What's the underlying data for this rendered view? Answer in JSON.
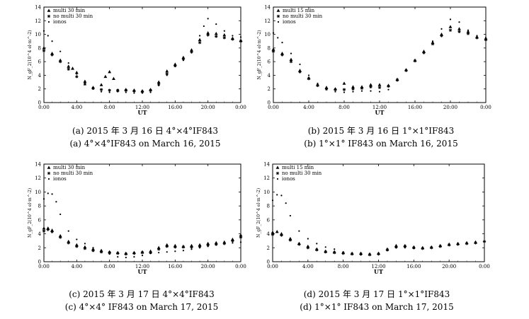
{
  "chart_data": [
    {
      "id": "a",
      "type": "scatter",
      "xlabel": "UT",
      "ylabel": "N_gF_2(10^4 el·m^-2)",
      "xlim": [
        0,
        24
      ],
      "ylim": [
        0,
        14
      ],
      "x_ticks": [
        "0:00",
        "4:00",
        "8:00",
        "12:00",
        "16:00",
        "20:00",
        "0:00"
      ],
      "y_ticks": [
        "0",
        "2",
        "4",
        "6",
        "8",
        "10",
        "12",
        "14"
      ],
      "legend_position": "top-left",
      "series": [
        {
          "name": "multi 30 min",
          "marker": "triangle",
          "x": [
            0,
            1,
            2,
            3,
            3.5,
            4,
            5,
            6,
            7,
            7.5,
            8,
            8.5,
            9,
            10,
            11,
            12,
            13,
            14,
            15,
            16,
            17,
            18,
            19,
            20,
            21,
            22,
            23,
            24
          ],
          "y": [
            8.0,
            7.2,
            6.2,
            5.3,
            5.0,
            4.4,
            3.1,
            2.2,
            2.6,
            3.8,
            4.5,
            3.5,
            1.8,
            1.9,
            1.8,
            1.7,
            1.9,
            3.0,
            4.6,
            5.6,
            6.6,
            7.7,
            9.2,
            10.2,
            10.1,
            9.9,
            9.4,
            9.1
          ]
        },
        {
          "name": "no multi 30 min",
          "marker": "star",
          "x": [
            0,
            1,
            2,
            3,
            4,
            5,
            6,
            7,
            8,
            9,
            10,
            11,
            12,
            13,
            14,
            15,
            16,
            17,
            18,
            19,
            20,
            21,
            22,
            23,
            24
          ],
          "y": [
            7.6,
            7.0,
            6.0,
            4.9,
            3.8,
            2.7,
            2.1,
            1.9,
            1.8,
            1.8,
            1.8,
            1.7,
            1.6,
            1.8,
            2.7,
            4.2,
            5.4,
            6.4,
            7.4,
            8.8,
            9.9,
            9.7,
            9.5,
            9.3,
            9.0
          ]
        },
        {
          "name": "ionos",
          "marker": "dot",
          "x": [
            0,
            0.5,
            1,
            2,
            3,
            4,
            5,
            6,
            7,
            8,
            9,
            10,
            11,
            12,
            13,
            14,
            15,
            16,
            17,
            18,
            19,
            19.5,
            20,
            21,
            22,
            23,
            24
          ],
          "y": [
            10.5,
            9.8,
            9.0,
            7.5,
            5.8,
            4.2,
            2.9,
            2.0,
            1.6,
            1.5,
            1.6,
            1.5,
            1.4,
            1.4,
            1.5,
            2.5,
            4.0,
            5.3,
            6.2,
            7.7,
            9.8,
            11.2,
            12.3,
            11.5,
            10.5,
            9.8,
            9.6
          ]
        }
      ]
    },
    {
      "id": "b",
      "type": "scatter",
      "xlabel": "UT",
      "ylabel": "N_gF_2(10^4 el·m^-2)",
      "xlim": [
        0,
        24
      ],
      "ylim": [
        0,
        14
      ],
      "x_ticks": [
        "0:00",
        "4:00",
        "8:00",
        "12:00",
        "16:00",
        "20:00",
        "0:00"
      ],
      "y_ticks": [
        "0",
        "2",
        "4",
        "6",
        "8",
        "10",
        "12",
        "14"
      ],
      "legend_position": "top-left",
      "series": [
        {
          "name": "multi 15 min",
          "marker": "triangle",
          "x": [
            0,
            1,
            2,
            3,
            4,
            5,
            6,
            7,
            8,
            9,
            10,
            11,
            12,
            13,
            14,
            15,
            16,
            17,
            18,
            19,
            20,
            21,
            22,
            23,
            24
          ],
          "y": [
            7.8,
            7.2,
            6.3,
            4.7,
            3.6,
            2.6,
            2.2,
            2.0,
            2.8,
            2.3,
            2.3,
            2.6,
            2.6,
            2.5,
            3.4,
            4.8,
            6.2,
            7.5,
            8.8,
            10.0,
            11.1,
            10.8,
            10.4,
            9.6,
            9.4
          ]
        },
        {
          "name": "no multi 30 min",
          "marker": "star",
          "x": [
            0,
            1,
            2,
            3,
            4,
            5,
            6,
            7,
            8,
            9,
            10,
            11,
            12,
            13,
            14,
            15,
            16,
            17,
            18,
            19,
            20,
            21,
            22,
            23,
            24
          ],
          "y": [
            7.5,
            7.0,
            6.0,
            4.5,
            3.5,
            2.5,
            2.0,
            1.9,
            1.9,
            2.0,
            2.1,
            2.3,
            2.2,
            2.4,
            3.3,
            4.7,
            6.1,
            7.3,
            8.6,
            9.8,
            10.6,
            10.4,
            10.1,
            9.5,
            9.2
          ]
        },
        {
          "name": "ionos",
          "marker": "dot",
          "x": [
            0,
            0.5,
            1,
            2,
            3,
            4,
            5,
            6,
            7,
            8,
            9,
            10,
            11,
            12,
            13,
            14,
            15,
            16,
            17,
            18,
            19,
            20,
            21,
            22,
            23,
            24
          ],
          "y": [
            10.2,
            9.5,
            8.8,
            7.2,
            5.6,
            4.0,
            2.8,
            1.9,
            1.6,
            1.5,
            1.6,
            1.7,
            1.7,
            1.6,
            1.9,
            3.2,
            4.7,
            6.1,
            7.5,
            9.0,
            10.8,
            12.2,
            11.8,
            10.6,
            9.8,
            9.5
          ]
        }
      ]
    },
    {
      "id": "c",
      "type": "scatter",
      "xlabel": "UT",
      "ylabel": "N_gF_2(10^4 el·m^-2)",
      "xlim": [
        0,
        24
      ],
      "ylim": [
        0,
        14
      ],
      "x_ticks": [
        "0:00",
        "4:00",
        "8:00",
        "12:00",
        "16:00",
        "20:00",
        "0:00"
      ],
      "y_ticks": [
        "0",
        "2",
        "4",
        "6",
        "8",
        "10",
        "12",
        "14"
      ],
      "legend_position": "top-left",
      "series": [
        {
          "name": "multi 30 min",
          "marker": "triangle",
          "x": [
            0,
            0.5,
            1,
            2,
            3,
            4,
            5,
            6,
            7,
            8,
            9,
            10,
            11,
            12,
            13,
            14,
            15,
            16,
            17,
            18,
            19,
            20,
            21,
            22,
            23,
            24
          ],
          "y": [
            4.8,
            4.8,
            4.5,
            3.7,
            2.9,
            2.4,
            2.1,
            1.8,
            1.6,
            1.4,
            1.3,
            1.2,
            1.3,
            1.4,
            1.5,
            2.0,
            2.4,
            2.3,
            2.2,
            2.3,
            2.4,
            2.6,
            2.7,
            2.8,
            3.2,
            3.8
          ]
        },
        {
          "name": "no multi 30 min",
          "marker": "star",
          "x": [
            0,
            0.5,
            1,
            2,
            3,
            4,
            5,
            6,
            7,
            8,
            9,
            10,
            11,
            12,
            13,
            14,
            15,
            16,
            17,
            18,
            19,
            20,
            21,
            22,
            23,
            24
          ],
          "y": [
            4.4,
            4.6,
            4.3,
            3.5,
            2.7,
            2.2,
            1.9,
            1.6,
            1.4,
            1.3,
            1.2,
            1.1,
            1.2,
            1.3,
            1.3,
            1.8,
            2.2,
            2.1,
            2.1,
            2.1,
            2.2,
            2.4,
            2.5,
            2.6,
            3.0,
            3.5
          ]
        },
        {
          "name": "ionos",
          "marker": "dot",
          "x": [
            0,
            0.5,
            1,
            1.5,
            2,
            3,
            4,
            5,
            6,
            7,
            8,
            9,
            10,
            11,
            12,
            13,
            14,
            15,
            16,
            17,
            18,
            19,
            20,
            21,
            22,
            23,
            24
          ],
          "y": [
            9.0,
            9.8,
            9.7,
            8.6,
            6.8,
            4.4,
            3.2,
            2.6,
            2.0,
            1.6,
            1.1,
            0.7,
            0.6,
            0.7,
            0.9,
            1.2,
            1.3,
            1.4,
            1.5,
            1.6,
            1.8,
            2.0,
            2.2,
            2.4,
            2.6,
            2.7,
            2.8
          ]
        }
      ]
    },
    {
      "id": "d",
      "type": "scatter",
      "xlabel": "UT",
      "ylabel": "N_gF_2(10^4 el·m^-2)",
      "xlim": [
        0,
        24
      ],
      "ylim": [
        0,
        14
      ],
      "x_ticks": [
        "0:00",
        "4:00",
        "8:00",
        "12:00",
        "16:00",
        "20:00",
        "0:00"
      ],
      "y_ticks": [
        "0",
        "2",
        "4",
        "6",
        "8",
        "10",
        "12",
        "14"
      ],
      "legend_position": "top-left",
      "series": [
        {
          "name": "multi 15 min",
          "marker": "triangle",
          "x": [
            0,
            0.5,
            1,
            2,
            3,
            4,
            5,
            6,
            7,
            8,
            9,
            10,
            11,
            12,
            13,
            14,
            15,
            16,
            17,
            18,
            19,
            20,
            21,
            22,
            23
          ],
          "y": [
            4.2,
            4.3,
            4.0,
            3.3,
            2.6,
            2.2,
            1.8,
            1.5,
            1.4,
            1.3,
            1.2,
            1.2,
            1.1,
            1.2,
            1.8,
            2.3,
            2.3,
            2.1,
            2.0,
            2.1,
            2.3,
            2.5,
            2.6,
            2.7,
            2.8
          ]
        },
        {
          "name": "no multi 30 min",
          "marker": "star",
          "x": [
            0,
            1,
            2,
            3,
            4,
            5,
            6,
            7,
            8,
            9,
            10,
            11,
            12,
            13,
            14,
            15,
            16,
            17,
            18,
            19,
            20,
            21,
            22,
            23,
            24
          ],
          "y": [
            3.9,
            3.8,
            3.1,
            2.5,
            2.0,
            1.7,
            1.4,
            1.3,
            1.2,
            1.1,
            1.1,
            1.0,
            1.1,
            1.7,
            2.1,
            2.2,
            2.0,
            1.9,
            2.0,
            2.2,
            2.4,
            2.5,
            2.6,
            2.7,
            2.9
          ]
        },
        {
          "name": "ionos",
          "marker": "dot",
          "x": [
            0,
            0.5,
            1,
            1.5,
            2,
            3,
            4,
            5,
            6,
            7,
            8,
            9,
            10,
            11,
            12,
            13,
            14,
            15,
            16,
            17,
            18,
            19,
            20,
            21,
            22,
            23,
            24
          ],
          "y": [
            8.8,
            9.6,
            9.5,
            8.4,
            6.6,
            4.4,
            3.3,
            2.6,
            2.1,
            1.8,
            1.4,
            1.1,
            1.0,
            1.0,
            1.1,
            1.6,
            2.0,
            2.0,
            1.9,
            1.9,
            2.1,
            2.3,
            2.5,
            2.6,
            2.7,
            2.8,
            2.9
          ]
        }
      ]
    }
  ],
  "captions": {
    "a": {
      "zh": "(a) 2015 年 3 月 16 日 4°×4°IF843",
      "en": "(a) 4°×4°IF843 on March 16, 2015"
    },
    "b": {
      "zh": "(b) 2015 年 3 月 16 日 1°×1°IF843",
      "en": "(b) 1°×1° IF843 on March 16, 2015"
    },
    "c": {
      "zh": "(c) 2015 年 3 月 17 日 4°×4°IF843",
      "en": "(c) 4°×4° IF843 on March 17, 2015"
    },
    "d": {
      "zh": "(d) 2015 年 3 月 17 日 1°×1°IF843",
      "en": "(d) 1°×1° IF843 on March 17, 2015"
    }
  }
}
